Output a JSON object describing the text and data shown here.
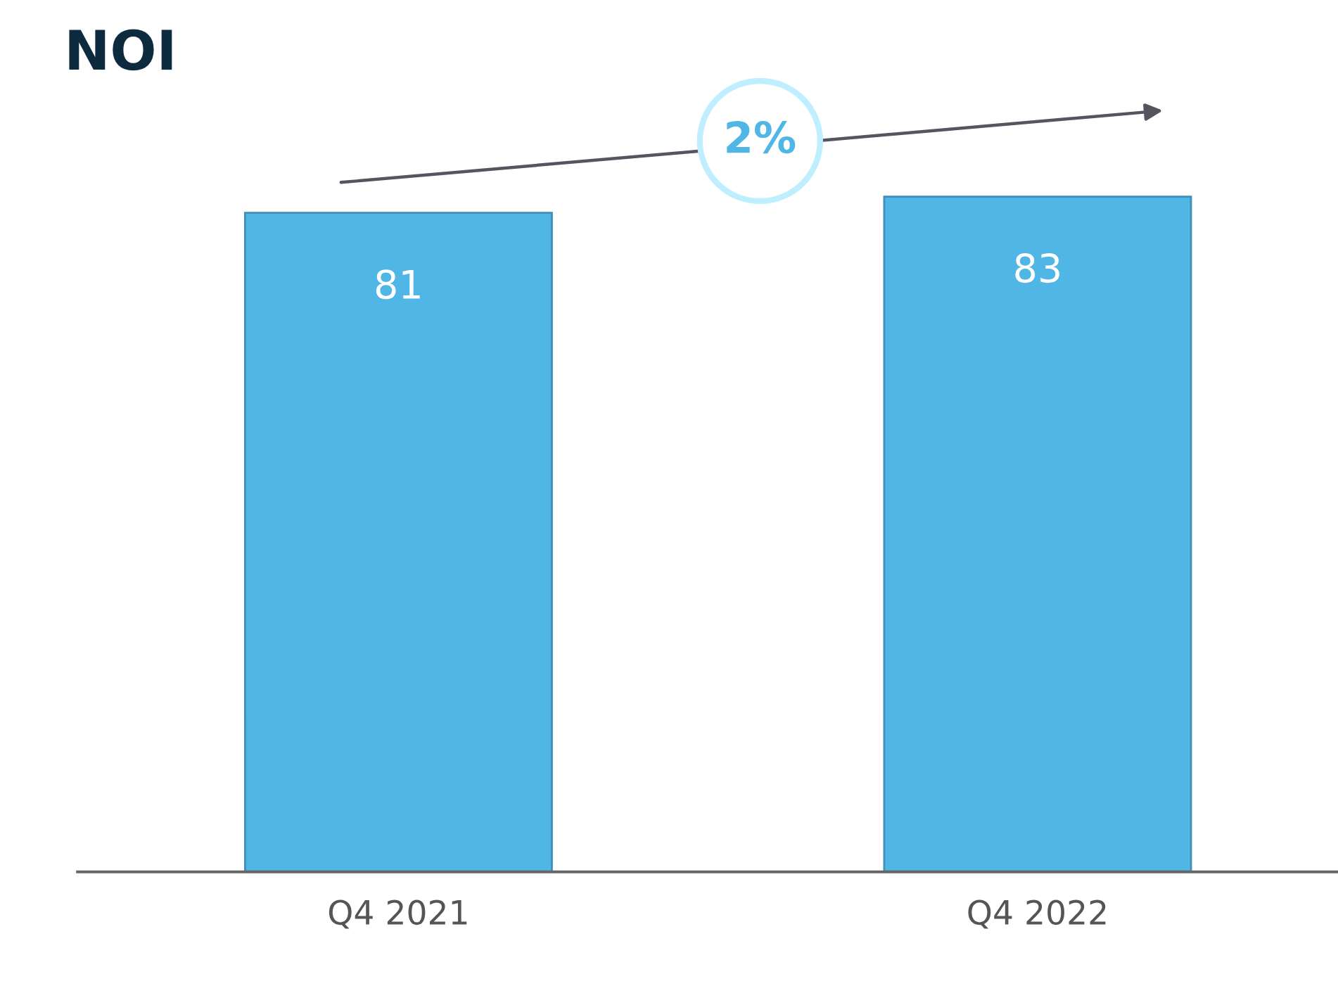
{
  "chart_data": {
    "type": "bar",
    "title": "NOI",
    "categories": [
      "Q4 2021",
      "Q4 2022"
    ],
    "values": [
      81,
      83
    ],
    "color": "#4fb6e6",
    "tick_labels": "x",
    "data_labels": true,
    "grid": false,
    "legend": false,
    "annotations": [
      "2%"
    ]
  }
}
